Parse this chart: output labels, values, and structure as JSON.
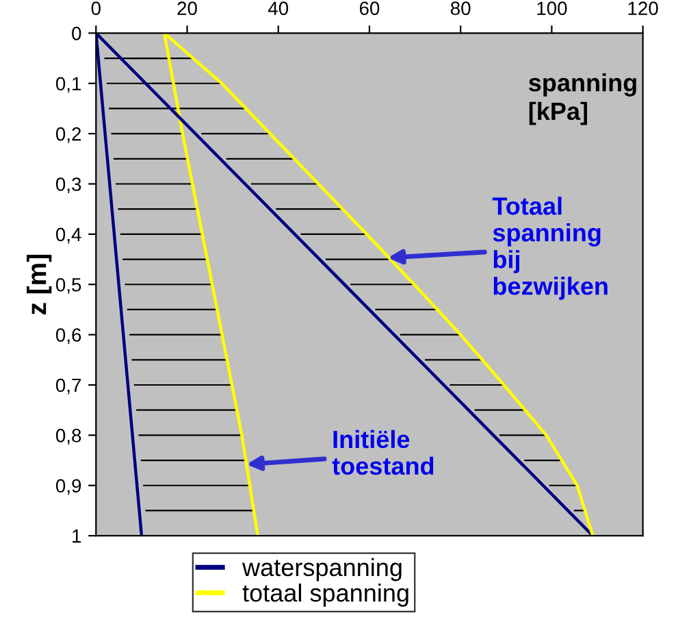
{
  "chart_data": {
    "type": "line",
    "xlabel": "spanning [kPa]",
    "ylabel": "z [m]",
    "xlim": [
      0,
      120
    ],
    "xticks": [
      0,
      20,
      40,
      60,
      80,
      100,
      120
    ],
    "ylim": [
      1,
      0
    ],
    "yticks": [
      0,
      {
        "value": 0.1,
        "label": "0,1"
      },
      {
        "value": 0.2,
        "label": "0,2"
      },
      {
        "value": 0.3,
        "label": "0,3"
      },
      {
        "value": 0.4,
        "label": "0,4"
      },
      {
        "value": 0.5,
        "label": "0,5"
      },
      {
        "value": 0.6,
        "label": "0,6"
      },
      {
        "value": 0.7,
        "label": "0,7"
      },
      {
        "value": 0.8,
        "label": "0,8"
      },
      {
        "value": 0.9,
        "label": "0,9"
      },
      1
    ],
    "series": [
      {
        "name": "waterspanning",
        "color": "#000080",
        "x": [
          0,
          10
        ],
        "values": [
          0,
          1
        ]
      },
      {
        "name": "totaal spanning",
        "color": "#ffff00",
        "x": [
          15,
          19,
          25.5,
          32,
          35.5
        ],
        "values": [
          0,
          0.2,
          0.5,
          0.8,
          1
        ]
      },
      {
        "color": "#000080",
        "x": [
          0,
          109
        ],
        "values": [
          0,
          1
        ]
      },
      {
        "color": "#ffff00",
        "x": [
          15,
          27.6,
          38.2,
          48.8,
          59.4,
          69.8,
          80,
          89.5,
          98.8,
          105.6,
          109
        ],
        "values": [
          0,
          0.1,
          0.2,
          0.3,
          0.4,
          0.5,
          0.6,
          0.7,
          0.8,
          0.9,
          1
        ]
      }
    ],
    "annotations": [
      {
        "text": "Totaal\nspanning\nbij\nbezwijken",
        "x": 64,
        "y": 0.447
      },
      {
        "text": "Initiële\ntoestand",
        "x": 33,
        "y": 0.858
      }
    ],
    "legend": "bottom",
    "grid": false,
    "marker": "none",
    "line_style": "solid"
  }
}
